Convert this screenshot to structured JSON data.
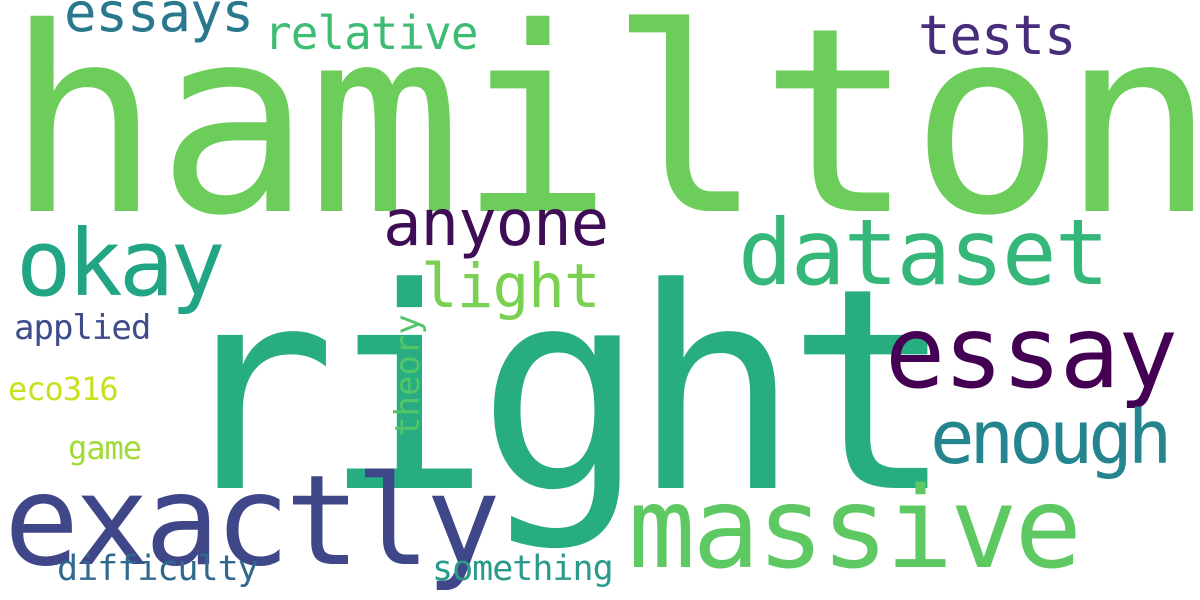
{
  "words": [
    {
      "text": "hamilton",
      "color": "#6ccd5a"
    },
    {
      "text": "right",
      "color": "#27ad81"
    },
    {
      "text": "exactly",
      "color": "#3f4788"
    },
    {
      "text": "massive",
      "color": "#5ec962"
    },
    {
      "text": "dataset",
      "color": "#35b779"
    },
    {
      "text": "essay",
      "color": "#440154"
    },
    {
      "text": "okay",
      "color": "#21a585"
    },
    {
      "text": "enough",
      "color": "#25858e"
    },
    {
      "text": "anyone",
      "color": "#3f0d56"
    },
    {
      "text": "light",
      "color": "#7ad151"
    },
    {
      "text": "essays",
      "color": "#2a788e"
    },
    {
      "text": "relative",
      "color": "#3fbc73"
    },
    {
      "text": "tests",
      "color": "#472d7b"
    },
    {
      "text": "applied",
      "color": "#3e4c8a"
    },
    {
      "text": "eco316",
      "color": "#c8e020"
    },
    {
      "text": "theory",
      "color": "#52c569"
    },
    {
      "text": "game",
      "color": "#a2da37"
    },
    {
      "text": "difficulty",
      "color": "#30698e"
    },
    {
      "text": "something",
      "color": "#2a9a8a"
    }
  ]
}
